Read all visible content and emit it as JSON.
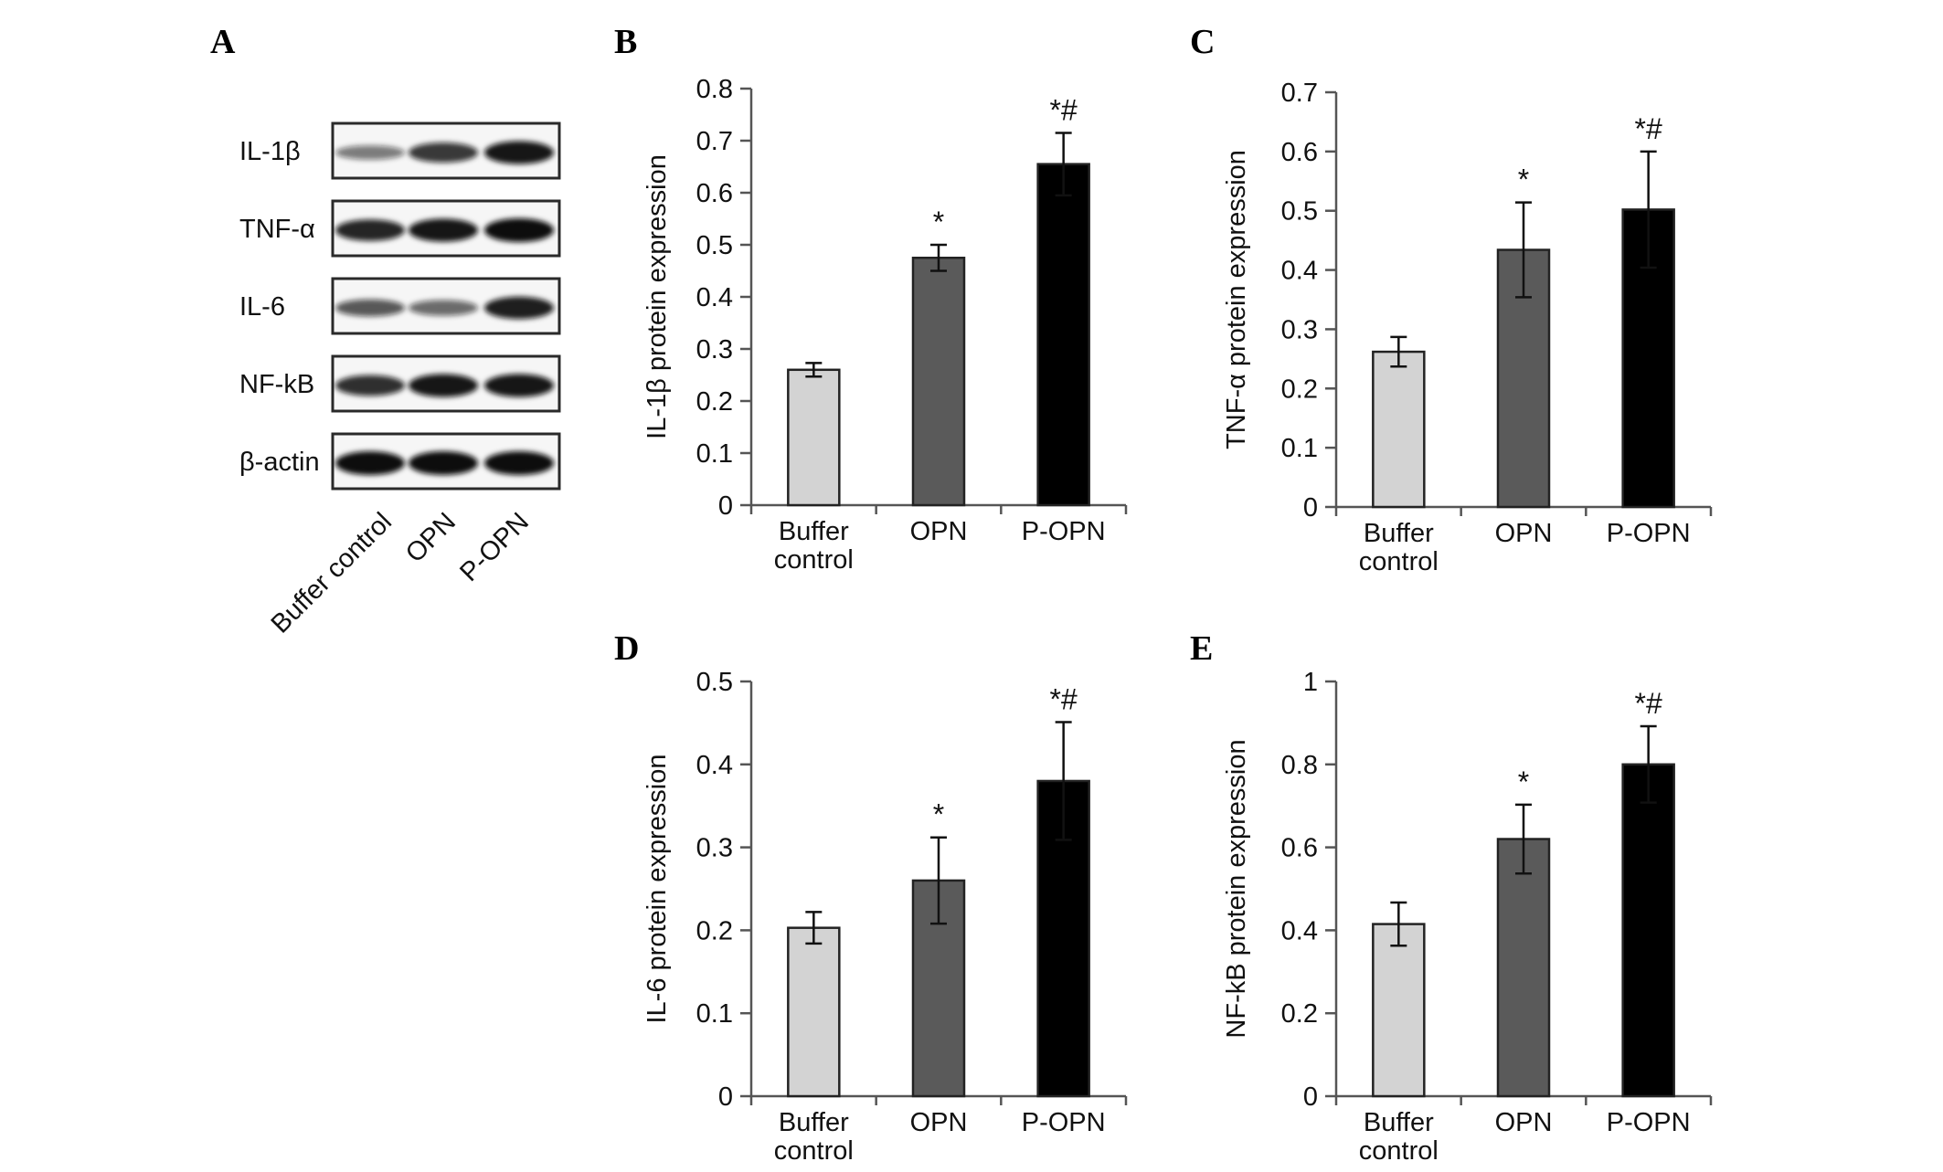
{
  "figure": {
    "panel_a": {
      "letter": "A",
      "rows": [
        {
          "label": "IL-1β",
          "intensities": [
            0.35,
            0.75,
            0.95
          ]
        },
        {
          "label": "TNF-α",
          "intensities": [
            0.85,
            0.95,
            1.0
          ]
        },
        {
          "label": "IL-6",
          "intensities": [
            0.55,
            0.45,
            0.9
          ]
        },
        {
          "label": "NF-kB",
          "intensities": [
            0.8,
            0.95,
            0.95
          ]
        },
        {
          "label": "β-actin",
          "intensities": [
            1.0,
            1.0,
            1.0
          ]
        }
      ],
      "lanes": [
        "Buffer control",
        "OPN",
        "P-OPN"
      ]
    }
  },
  "chart_data": [
    {
      "panel": "B",
      "type": "bar",
      "categories": [
        [
          "Buffer",
          "control"
        ],
        [
          "OPN"
        ],
        [
          "P-OPN"
        ]
      ],
      "values": [
        0.26,
        0.475,
        0.655
      ],
      "errors": [
        0.013,
        0.025,
        0.06
      ],
      "annotations": [
        "",
        "*",
        "*#"
      ],
      "ylabel": "IL-1β protein expression",
      "ylim": [
        0,
        0.8
      ],
      "yticks": [
        "0",
        "0.1",
        "0.2",
        "0.3",
        "0.4",
        "0.5",
        "0.6",
        "0.7",
        "0.8"
      ],
      "bar_colors": [
        "#d3d3d3",
        "#5a5a5a",
        "#000000"
      ]
    },
    {
      "panel": "C",
      "type": "bar",
      "categories": [
        [
          "Buffer",
          "control"
        ],
        [
          "OPN"
        ],
        [
          "P-OPN"
        ]
      ],
      "values": [
        0.262,
        0.434,
        0.502
      ],
      "errors": [
        0.025,
        0.08,
        0.098
      ],
      "annotations": [
        "",
        "*",
        "*#"
      ],
      "ylabel": "TNF-α protein expression",
      "ylim": [
        0,
        0.7
      ],
      "yticks": [
        "0",
        "0.1",
        "0.2",
        "0.3",
        "0.4",
        "0.5",
        "0.6",
        "0.7"
      ],
      "bar_colors": [
        "#d3d3d3",
        "#5a5a5a",
        "#000000"
      ]
    },
    {
      "panel": "D",
      "type": "bar",
      "categories": [
        [
          "Buffer",
          "control"
        ],
        [
          "OPN"
        ],
        [
          "P-OPN"
        ]
      ],
      "values": [
        0.203,
        0.26,
        0.38
      ],
      "errors": [
        0.019,
        0.052,
        0.071
      ],
      "annotations": [
        "",
        "*",
        "*#"
      ],
      "ylabel": "IL-6 protein expression",
      "ylim": [
        0,
        0.5
      ],
      "yticks": [
        "0",
        "0.1",
        "0.2",
        "0.3",
        "0.4",
        "0.5"
      ],
      "bar_colors": [
        "#d3d3d3",
        "#5a5a5a",
        "#000000"
      ]
    },
    {
      "panel": "E",
      "type": "bar",
      "categories": [
        [
          "Buffer",
          "control"
        ],
        [
          "OPN"
        ],
        [
          "P-OPN"
        ]
      ],
      "values": [
        0.415,
        0.62,
        0.8
      ],
      "errors": [
        0.052,
        0.083,
        0.092
      ],
      "annotations": [
        "",
        "*",
        "*#"
      ],
      "ylabel": "NF-kB protein expression",
      "ylim": [
        0,
        1
      ],
      "yticks": [
        "0",
        "0.2",
        "0.4",
        "0.6",
        "0.8",
        "1"
      ],
      "bar_colors": [
        "#d3d3d3",
        "#5a5a5a",
        "#000000"
      ]
    }
  ]
}
